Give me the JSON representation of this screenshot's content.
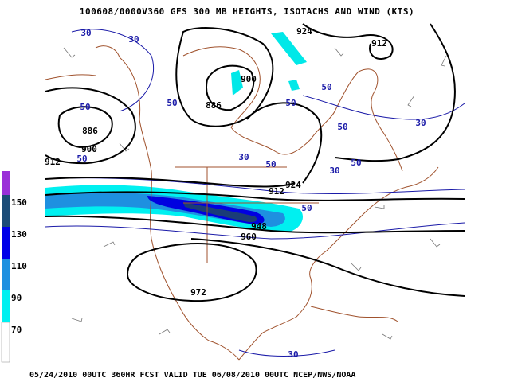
{
  "header": {
    "title": "100608/0000V360 GFS 300 MB  HEIGHTS, ISOTACHS AND WIND (KTS)"
  },
  "footer": {
    "text": "05/24/2010 00UTC 360HR FCST VALID TUE 06/08/2010 00UTC  NCEP/NWS/NOAA"
  },
  "colorbar": {
    "labels": [
      "150",
      "130",
      "110",
      "90",
      "70"
    ]
  },
  "map": {
    "isotach_labels": [
      "30",
      "30",
      "30",
      "30",
      "30",
      "30",
      "50",
      "50",
      "50",
      "50",
      "50",
      "50",
      "50",
      "50",
      "50"
    ],
    "height_labels": [
      "924",
      "912",
      "900",
      "886",
      "886",
      "900",
      "912",
      "912",
      "924",
      "948",
      "960",
      "972"
    ]
  }
}
